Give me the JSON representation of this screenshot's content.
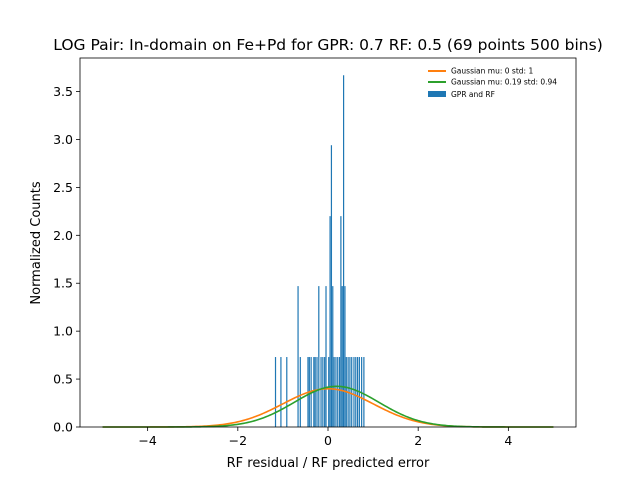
{
  "chart_data": {
    "type": "bar",
    "title": "LOG Pair: In-domain on Fe+Pd for GPR: 0.7 RF: 0.5 (69 points 500 bins)",
    "xlabel": "RF residual / RF predicted error",
    "ylabel": "Normalized Counts",
    "xlim": [
      -5.5,
      5.5
    ],
    "ylim": [
      0,
      3.85
    ],
    "xticks": [
      -4,
      -2,
      0,
      2,
      4
    ],
    "xtick_labels": [
      "−4",
      "−2",
      "0",
      "2",
      "4"
    ],
    "yticks": [
      0.0,
      0.5,
      1.0,
      1.5,
      2.0,
      2.5,
      3.0,
      3.5
    ],
    "ytick_labels": [
      "0.0",
      "0.5",
      "1.0",
      "1.5",
      "2.0",
      "2.5",
      "3.0",
      "3.5"
    ],
    "grid": false,
    "legend_position": "top-right",
    "histogram": {
      "name": "GPR and RF",
      "color": "#1f77b4",
      "bin_width": 0.0147,
      "bins": [
        {
          "x": -1.17,
          "y": 0.73
        },
        {
          "x": -1.05,
          "y": 0.73
        },
        {
          "x": -0.92,
          "y": 0.73
        },
        {
          "x": -0.67,
          "y": 1.47
        },
        {
          "x": -0.62,
          "y": 0.73
        },
        {
          "x": -0.45,
          "y": 0.73
        },
        {
          "x": -0.42,
          "y": 0.73
        },
        {
          "x": -0.38,
          "y": 0.73
        },
        {
          "x": -0.32,
          "y": 0.73
        },
        {
          "x": -0.29,
          "y": 0.73
        },
        {
          "x": -0.25,
          "y": 0.73
        },
        {
          "x": -0.21,
          "y": 1.47
        },
        {
          "x": -0.16,
          "y": 0.73
        },
        {
          "x": -0.12,
          "y": 0.73
        },
        {
          "x": -0.08,
          "y": 0.73
        },
        {
          "x": -0.05,
          "y": 1.47
        },
        {
          "x": 0.01,
          "y": 0.73
        },
        {
          "x": 0.04,
          "y": 2.2
        },
        {
          "x": 0.07,
          "y": 2.94
        },
        {
          "x": 0.1,
          "y": 1.47
        },
        {
          "x": 0.13,
          "y": 0.73
        },
        {
          "x": 0.17,
          "y": 0.73
        },
        {
          "x": 0.21,
          "y": 0.73
        },
        {
          "x": 0.25,
          "y": 0.73
        },
        {
          "x": 0.28,
          "y": 2.2
        },
        {
          "x": 0.31,
          "y": 1.47
        },
        {
          "x": 0.34,
          "y": 3.67
        },
        {
          "x": 0.37,
          "y": 1.47
        },
        {
          "x": 0.4,
          "y": 0.73
        },
        {
          "x": 0.44,
          "y": 0.73
        },
        {
          "x": 0.48,
          "y": 0.73
        },
        {
          "x": 0.52,
          "y": 0.73
        },
        {
          "x": 0.57,
          "y": 0.73
        },
        {
          "x": 0.61,
          "y": 0.73
        },
        {
          "x": 0.65,
          "y": 0.73
        },
        {
          "x": 0.69,
          "y": 0.73
        },
        {
          "x": 0.74,
          "y": 0.73
        },
        {
          "x": 0.79,
          "y": 0.73
        }
      ]
    },
    "series": [
      {
        "name": "Gaussian mu: 0 std: 1",
        "type": "line",
        "mu": 0,
        "std": 1,
        "x_range": [
          -5,
          5
        ],
        "color": "#ff7f0e"
      },
      {
        "name": "Gaussian mu: 0.19 std: 0.94",
        "type": "line",
        "mu": 0.19,
        "std": 0.94,
        "x_range": [
          -5,
          5
        ],
        "color": "#2ca02c"
      }
    ]
  }
}
